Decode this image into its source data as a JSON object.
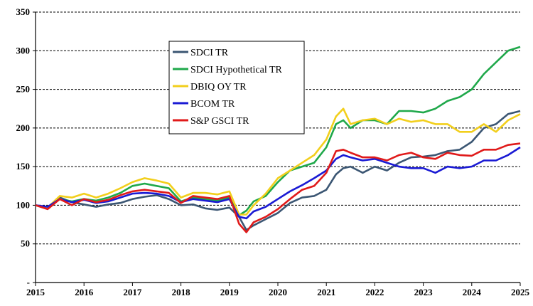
{
  "chart_data": {
    "type": "line",
    "title": "",
    "xlabel": "",
    "ylabel": "",
    "xlim": [
      2015,
      2025
    ],
    "ylim": [
      0,
      350
    ],
    "x_ticks": [
      "2015",
      "2016",
      "2017",
      "2018",
      "2019",
      "2020",
      "2021",
      "2022",
      "2023",
      "2024",
      "2025"
    ],
    "y_ticks": [
      "-",
      "50",
      "100",
      "150",
      "200",
      "250",
      "300",
      "350"
    ],
    "y_tick_values": [
      0,
      50,
      100,
      150,
      200,
      250,
      300,
      350
    ],
    "gridlines": "horizontal dashed",
    "legend_position": "upper-left",
    "x": [
      2015.0,
      2015.25,
      2015.5,
      2015.75,
      2016.0,
      2016.25,
      2016.5,
      2016.75,
      2017.0,
      2017.25,
      2017.5,
      2017.75,
      2018.0,
      2018.25,
      2018.5,
      2018.75,
      2019.0,
      2019.2,
      2019.35,
      2019.5,
      2019.75,
      2020.0,
      2020.25,
      2020.5,
      2020.75,
      2021.0,
      2021.2,
      2021.35,
      2021.5,
      2021.75,
      2022.0,
      2022.25,
      2022.5,
      2022.75,
      2023.0,
      2023.25,
      2023.5,
      2023.75,
      2024.0,
      2024.25,
      2024.5,
      2024.75,
      2025.0
    ],
    "series": [
      {
        "name": "SDCI TR",
        "color": "#3b5673",
        "values": [
          100,
          97,
          110,
          104,
          101,
          98,
          101,
          103,
          108,
          111,
          113,
          108,
          100,
          101,
          96,
          94,
          97,
          85,
          68,
          74,
          82,
          90,
          103,
          110,
          112,
          120,
          140,
          148,
          150,
          142,
          150,
          145,
          155,
          162,
          163,
          165,
          170,
          172,
          182,
          200,
          205,
          218,
          222
        ]
      },
      {
        "name": "SDCI Hypothetical TR",
        "color": "#1fa84a",
        "values": [
          100,
          96,
          108,
          105,
          108,
          106,
          110,
          116,
          125,
          128,
          125,
          122,
          105,
          110,
          108,
          106,
          110,
          87,
          93,
          105,
          112,
          130,
          145,
          150,
          155,
          175,
          205,
          210,
          200,
          210,
          210,
          205,
          222,
          222,
          220,
          225,
          235,
          240,
          250,
          270,
          285,
          300,
          305
        ]
      },
      {
        "name": "DBIQ OY TR",
        "color": "#f2cf1c",
        "values": [
          100,
          97,
          112,
          110,
          115,
          110,
          115,
          122,
          130,
          135,
          132,
          128,
          110,
          116,
          116,
          114,
          118,
          88,
          88,
          100,
          115,
          135,
          145,
          155,
          165,
          185,
          215,
          225,
          205,
          210,
          212,
          205,
          212,
          208,
          210,
          205,
          205,
          195,
          195,
          205,
          195,
          210,
          218
        ]
      },
      {
        "name": "BCOM TR",
        "color": "#1a1ad4",
        "values": [
          100,
          98,
          108,
          104,
          107,
          103,
          105,
          110,
          115,
          116,
          115,
          112,
          104,
          108,
          106,
          104,
          108,
          85,
          83,
          92,
          98,
          108,
          118,
          126,
          135,
          145,
          160,
          165,
          162,
          158,
          160,
          155,
          150,
          148,
          148,
          142,
          150,
          148,
          150,
          158,
          158,
          165,
          175
        ]
      },
      {
        "name": "S&P GSCI TR",
        "color": "#e01a1a",
        "values": [
          100,
          95,
          108,
          100,
          108,
          104,
          107,
          113,
          118,
          120,
          118,
          116,
          103,
          112,
          110,
          108,
          112,
          76,
          65,
          78,
          85,
          95,
          108,
          120,
          125,
          142,
          170,
          172,
          168,
          162,
          162,
          158,
          165,
          168,
          162,
          160,
          168,
          165,
          164,
          172,
          172,
          178,
          180
        ]
      }
    ]
  }
}
